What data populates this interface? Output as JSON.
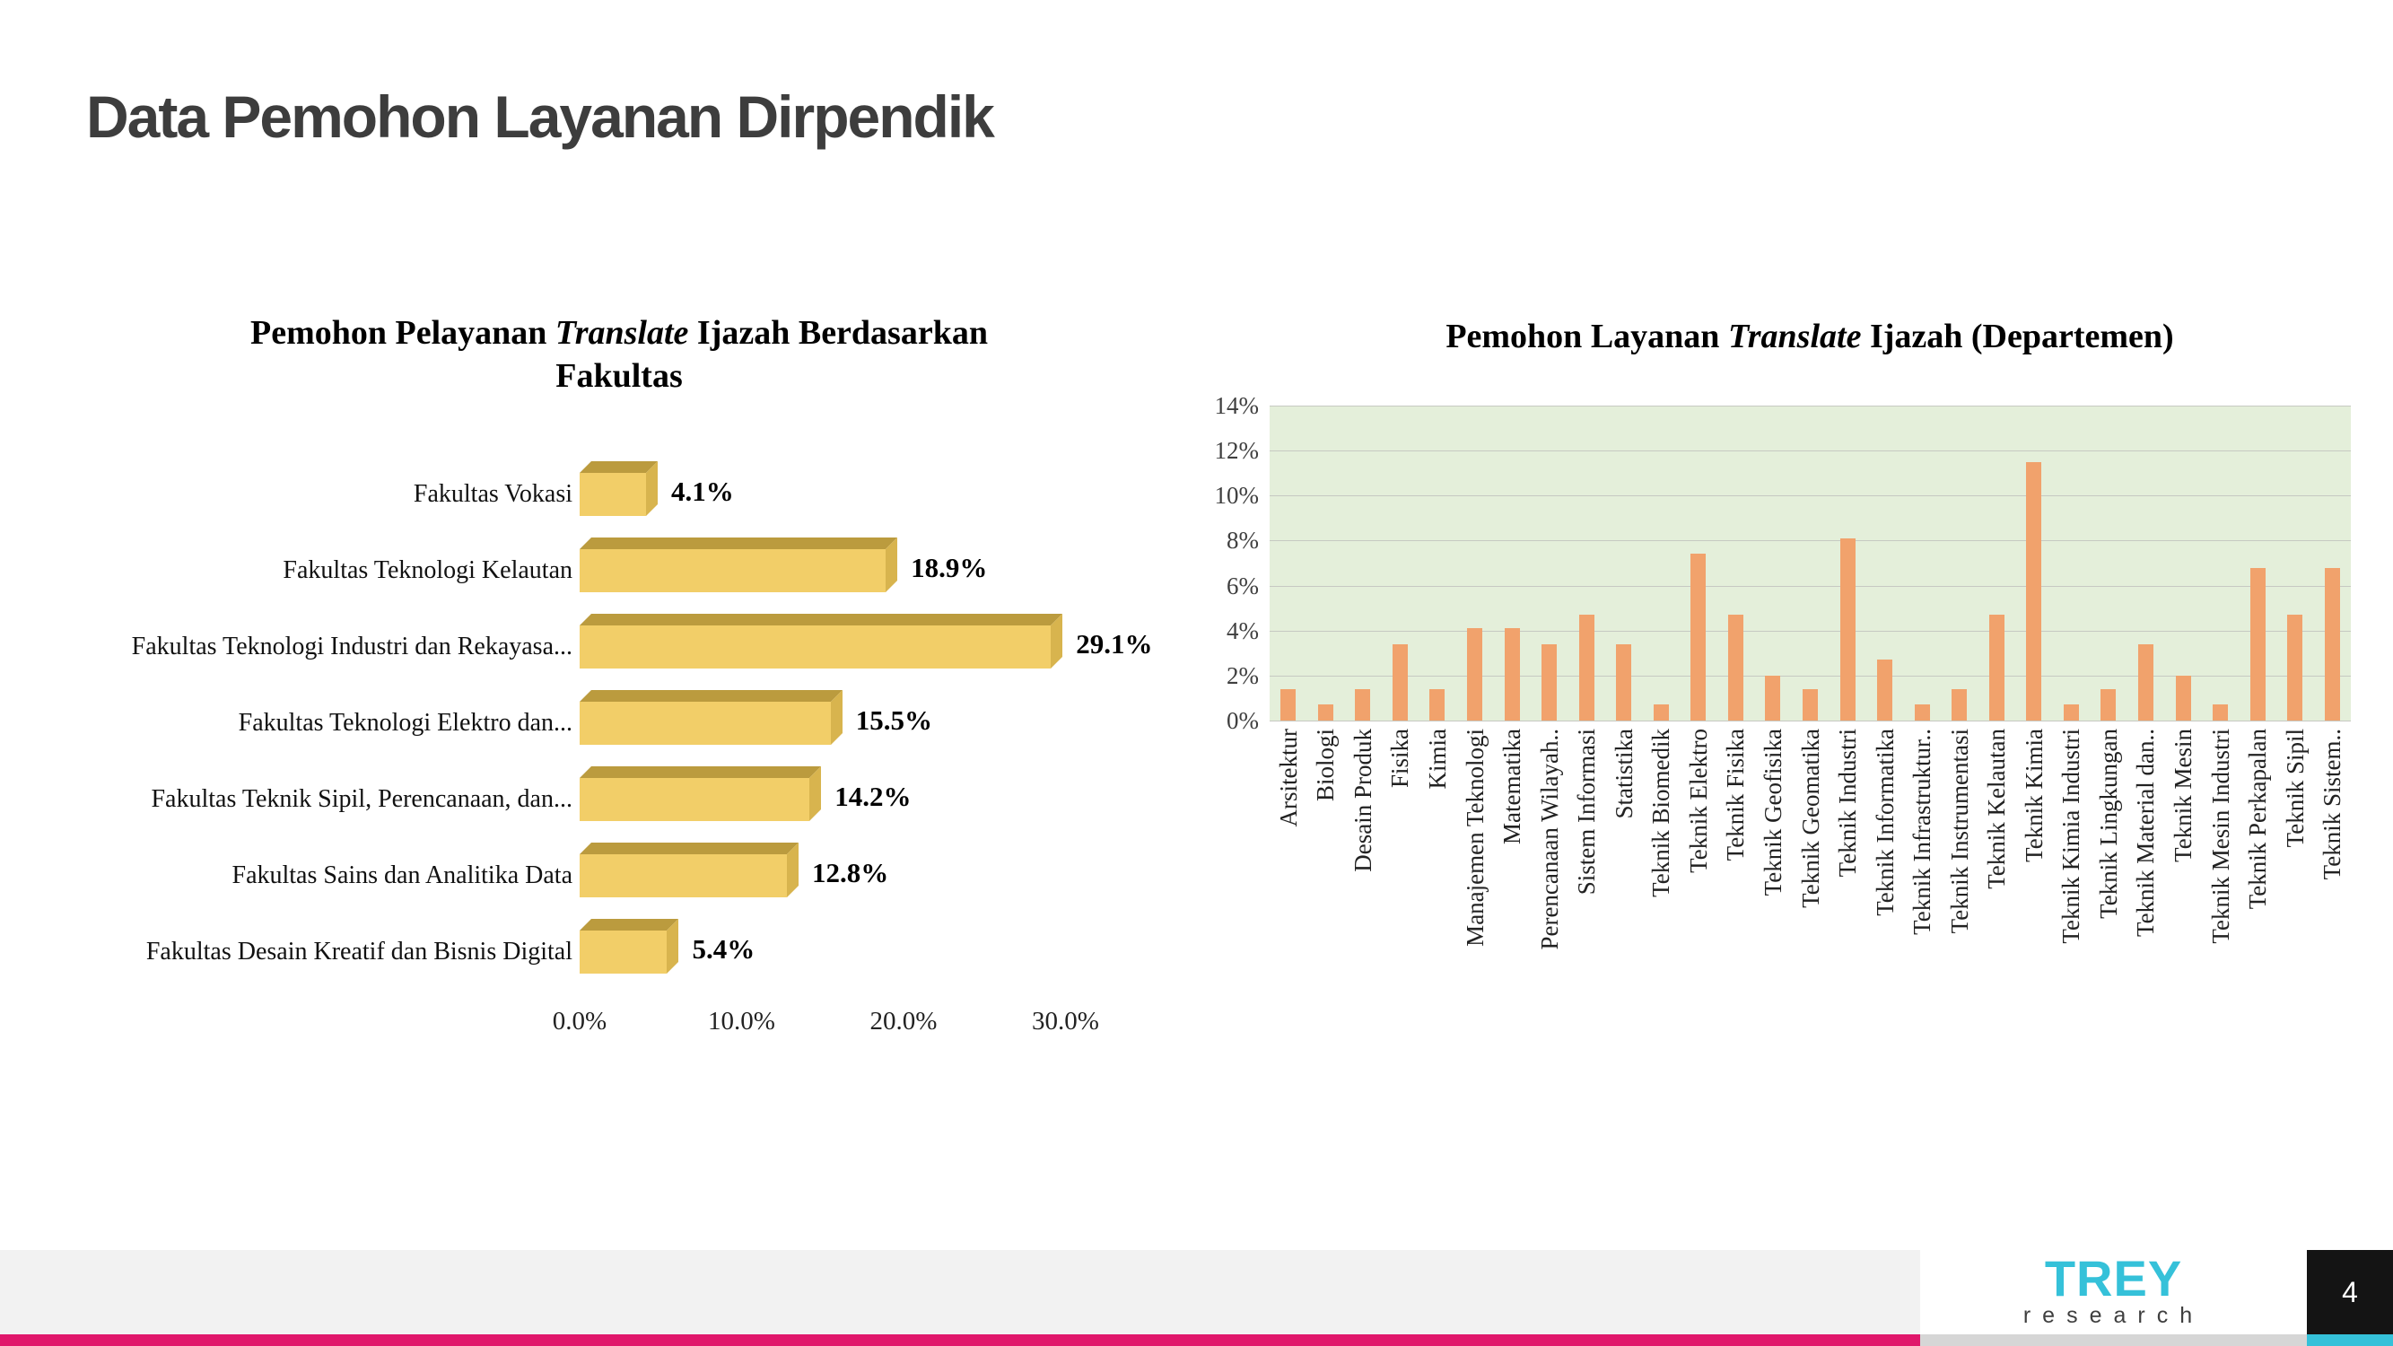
{
  "slide": {
    "title": "Data Pemohon Layanan Dirpendik",
    "page_number": "4",
    "footer": {
      "brand": "TREY",
      "brand_sub": "research"
    },
    "colors": {
      "accent_pink": "#E0176B",
      "accent_cyan": "#35C1D9",
      "title_gray": "#3d3d3d",
      "footer_band": "#F2F2F2",
      "page_box": "#141414"
    }
  },
  "chart_data": [
    {
      "type": "bar",
      "orientation": "horizontal",
      "title_prefix": "Pemohon Pelayanan ",
      "title_italic": "Translate",
      "title_suffix": " Ijazah Berdasarkan",
      "title_line2": "Fakultas",
      "categories": [
        "Fakultas Vokasi",
        "Fakultas Teknologi Kelautan",
        "Fakultas Teknologi Industri dan Rekayasa...",
        "Fakultas Teknologi Elektro dan...",
        "Fakultas Teknik Sipil, Perencanaan, dan...",
        "Fakultas Sains dan Analitika Data",
        "Fakultas Desain Kreatif dan Bisnis Digital"
      ],
      "values": [
        4.1,
        18.9,
        29.1,
        15.5,
        14.2,
        12.8,
        5.4
      ],
      "value_labels": [
        "4.1%",
        "18.9%",
        "29.1%",
        "15.5%",
        "14.2%",
        "12.8%",
        "5.4%"
      ],
      "x_ticks": [
        "0.0%",
        "10.0%",
        "20.0%",
        "30.0%"
      ],
      "x_tick_values": [
        0,
        10,
        20,
        30
      ],
      "xlim": [
        0,
        30
      ],
      "bar_color": "#F2CE68",
      "bar_top_color": "#BB9B3E",
      "bar_side_color": "#D8B44E",
      "grid": false,
      "legend": "none"
    },
    {
      "type": "bar",
      "orientation": "vertical",
      "title_prefix": "Pemohon Layanan ",
      "title_italic": "Translate",
      "title_suffix": " Ijazah (Departemen)",
      "categories": [
        "Arsitektur",
        "Biologi",
        "Desain Produk",
        "Fisika",
        "Kimia",
        "Manajemen Teknologi",
        "Matematika",
        "Perencanaan Wilayah..",
        "Sistem Informasi",
        "Statistika",
        "Teknik Biomedik",
        "Teknik Elektro",
        "Teknik Fisika",
        "Teknik Geofisika",
        "Teknik Geomatika",
        "Teknik Industri",
        "Teknik Informatika",
        "Teknik Infrastruktur..",
        "Teknik Instrumentasi",
        "Teknik Kelautan",
        "Teknik Kimia",
        "Teknik Kimia Industri",
        "Teknik Lingkungan",
        "Teknik Material dan..",
        "Teknik Mesin",
        "Teknik Mesin Industri",
        "Teknik Perkapalan",
        "Teknik Sipil",
        "Teknik Sistem.."
      ],
      "values": [
        1.4,
        0.7,
        1.4,
        3.4,
        1.4,
        4.1,
        4.1,
        3.4,
        4.7,
        3.4,
        0.7,
        7.4,
        4.7,
        2.0,
        1.4,
        8.1,
        2.7,
        0.7,
        1.4,
        4.7,
        11.5,
        0.7,
        1.4,
        3.4,
        2.0,
        0.7,
        6.8,
        4.7,
        6.8
      ],
      "y_ticks": [
        "14%",
        "12%",
        "10%",
        "8%",
        "6%",
        "4%",
        "2%",
        "0%"
      ],
      "y_tick_values": [
        14,
        12,
        10,
        8,
        6,
        4,
        2,
        0
      ],
      "ylim": [
        0,
        14
      ],
      "plot_bg": "#E4EFDA",
      "gridline_color": "#C6C9C2",
      "bar_color": "#F1A26C",
      "grid": true,
      "legend": "none"
    }
  ]
}
